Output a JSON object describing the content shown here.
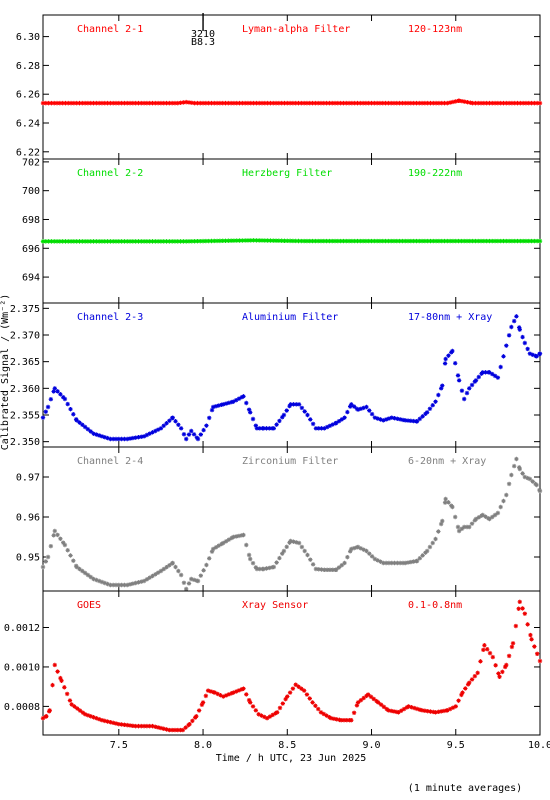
{
  "chart_data": {
    "type": "scatter",
    "marker": "asterisk",
    "xlabel": "Time / h UTC, 23 Jun 2025",
    "ylabel": "Calibrated Signal / (Wm⁻²)",
    "footnote": "(1 minute averages)",
    "xlim": [
      7.05,
      10.0
    ],
    "xticks": [
      7.5,
      8.0,
      8.5,
      9.0,
      9.5,
      10.0
    ],
    "xtick_labels": [
      "7.5",
      "8.0",
      "8.5",
      "9.0",
      "9.5",
      "10.0"
    ],
    "top_annotation": [
      "3210",
      "B8.3"
    ],
    "top_annotation_x": 8.0,
    "panels": [
      {
        "label_left": "Channel 2-1",
        "label_mid": "Lyman-alpha Filter",
        "label_right": "120-123nm",
        "color": "#ff0000",
        "ylim": [
          6.215,
          6.315
        ],
        "yticks": [
          6.22,
          6.24,
          6.26,
          6.28,
          6.3
        ],
        "ytick_labels": [
          "6.22",
          "6.24",
          "6.26",
          "6.28",
          "6.30"
        ],
        "x": [
          7.05,
          7.5,
          7.85,
          7.9,
          7.95,
          8.3,
          9.45,
          9.52,
          9.6,
          10.0
        ],
        "y": [
          6.2538,
          6.2538,
          6.2538,
          6.2545,
          6.2538,
          6.2538,
          6.2538,
          6.2555,
          6.2538,
          6.2538
        ]
      },
      {
        "label_left": "Channel 2-2",
        "label_mid": "Herzberg Filter",
        "label_right": "190-222nm",
        "color": "#00dd00",
        "ylim": [
          692.2,
          702.2
        ],
        "yticks": [
          694,
          696,
          698,
          700,
          702
        ],
        "ytick_labels": [
          "694",
          "696",
          "698",
          "700",
          "702"
        ],
        "x": [
          7.05,
          7.9,
          8.3,
          8.6,
          9.5,
          10.0
        ],
        "y": [
          696.48,
          696.48,
          696.55,
          696.5,
          696.5,
          696.5
        ]
      },
      {
        "label_left": "Channel 2-3",
        "label_mid": "Aluminium Filter",
        "label_right": "17-80nm + Xray",
        "color": "#0000dd",
        "ylim": [
          2.349,
          2.376
        ],
        "yticks": [
          2.35,
          2.355,
          2.36,
          2.365,
          2.37,
          2.375
        ],
        "ytick_labels": [
          "2.350",
          "2.355",
          "2.360",
          "2.365",
          "2.370",
          "2.375"
        ],
        "x": [
          7.05,
          7.08,
          7.12,
          7.18,
          7.25,
          7.35,
          7.45,
          7.55,
          7.65,
          7.75,
          7.82,
          7.87,
          7.9,
          7.93,
          7.97,
          8.02,
          8.06,
          8.12,
          8.18,
          8.24,
          8.28,
          8.32,
          8.36,
          8.42,
          8.48,
          8.52,
          8.57,
          8.62,
          8.67,
          8.72,
          8.79,
          8.84,
          8.88,
          8.92,
          8.97,
          9.02,
          9.07,
          9.12,
          9.2,
          9.27,
          9.33,
          9.38,
          9.42,
          9.44,
          9.48,
          9.52,
          9.55,
          9.58,
          9.62,
          9.66,
          9.7,
          9.75,
          9.8,
          9.83,
          9.86,
          9.88,
          9.91,
          9.94,
          9.98,
          10.0
        ],
        "y": [
          2.3545,
          2.3565,
          2.36,
          2.358,
          2.354,
          2.3515,
          2.3505,
          2.3505,
          2.351,
          2.3525,
          2.3545,
          2.3525,
          2.3505,
          2.352,
          2.3505,
          2.353,
          2.3565,
          2.357,
          2.3575,
          2.3585,
          2.3555,
          2.3525,
          2.3525,
          2.3525,
          2.355,
          2.357,
          2.357,
          2.355,
          2.3525,
          2.3525,
          2.3535,
          2.3545,
          2.357,
          2.356,
          2.3565,
          2.3545,
          2.354,
          2.3545,
          2.354,
          2.3538,
          2.3555,
          2.3575,
          2.3605,
          2.3655,
          2.367,
          2.3615,
          2.358,
          2.36,
          2.3615,
          2.363,
          2.363,
          2.362,
          2.368,
          2.3715,
          2.3735,
          2.371,
          2.3685,
          2.3665,
          2.366,
          2.3665
        ]
      },
      {
        "label_left": "Channel 2-4",
        "label_mid": "Zirconium Filter",
        "label_right": "6-20nm + Xray",
        "color": "#808080",
        "ylim": [
          0.9415,
          0.9775
        ],
        "yticks": [
          0.95,
          0.96,
          0.97
        ],
        "ytick_labels": [
          "0.95",
          "0.96",
          "0.97"
        ],
        "x": [
          7.05,
          7.08,
          7.12,
          7.18,
          7.25,
          7.35,
          7.45,
          7.55,
          7.65,
          7.75,
          7.82,
          7.87,
          7.9,
          7.93,
          7.97,
          8.02,
          8.06,
          8.12,
          8.18,
          8.24,
          8.28,
          8.32,
          8.36,
          8.42,
          8.48,
          8.52,
          8.57,
          8.62,
          8.67,
          8.72,
          8.79,
          8.84,
          8.88,
          8.92,
          8.97,
          9.02,
          9.07,
          9.12,
          9.2,
          9.27,
          9.33,
          9.38,
          9.42,
          9.44,
          9.48,
          9.52,
          9.55,
          9.58,
          9.62,
          9.66,
          9.7,
          9.75,
          9.8,
          9.83,
          9.86,
          9.88,
          9.91,
          9.94,
          9.98,
          10.0
        ],
        "y": [
          0.9475,
          0.95,
          0.9565,
          0.953,
          0.9475,
          0.9445,
          0.943,
          0.943,
          0.944,
          0.9465,
          0.9485,
          0.9455,
          0.942,
          0.9445,
          0.944,
          0.948,
          0.952,
          0.9535,
          0.955,
          0.9555,
          0.9495,
          0.947,
          0.947,
          0.9475,
          0.9515,
          0.954,
          0.9535,
          0.9505,
          0.947,
          0.9468,
          0.9468,
          0.9485,
          0.952,
          0.9525,
          0.9515,
          0.9495,
          0.9485,
          0.9485,
          0.9485,
          0.949,
          0.9515,
          0.9545,
          0.959,
          0.9645,
          0.9625,
          0.9565,
          0.9575,
          0.9575,
          0.9595,
          0.9605,
          0.9595,
          0.961,
          0.9655,
          0.9705,
          0.9745,
          0.972,
          0.97,
          0.9695,
          0.968,
          0.9665
        ]
      },
      {
        "label_left": "GOES",
        "label_mid": "Xray Sensor",
        "label_right": "0.1-0.8nm",
        "color": "#ee0000",
        "ylim": [
          0.000655,
          0.001385
        ],
        "yticks": [
          0.0008,
          0.001,
          0.0012
        ],
        "ytick_labels": [
          "0.0008",
          "0.0010",
          "0.0012"
        ],
        "x": [
          7.05,
          7.07,
          7.09,
          7.12,
          7.16,
          7.22,
          7.3,
          7.4,
          7.5,
          7.6,
          7.7,
          7.8,
          7.88,
          7.92,
          7.96,
          8.0,
          8.03,
          8.07,
          8.12,
          8.18,
          8.24,
          8.28,
          8.33,
          8.38,
          8.44,
          8.5,
          8.55,
          8.6,
          8.65,
          8.7,
          8.76,
          8.82,
          8.88,
          8.92,
          8.98,
          9.04,
          9.1,
          9.16,
          9.22,
          9.3,
          9.38,
          9.45,
          9.5,
          9.54,
          9.58,
          9.63,
          9.67,
          9.72,
          9.76,
          9.8,
          9.84,
          9.88,
          9.91,
          9.95,
          10.0
        ],
        "y": [
          0.00074,
          0.00075,
          0.00078,
          0.00101,
          0.00093,
          0.00081,
          0.00076,
          0.00073,
          0.00071,
          0.0007,
          0.0007,
          0.00068,
          0.00068,
          0.00071,
          0.00075,
          0.00082,
          0.00088,
          0.00087,
          0.00085,
          0.00087,
          0.00089,
          0.00082,
          0.00076,
          0.00074,
          0.00077,
          0.00085,
          0.00091,
          0.00088,
          0.00082,
          0.00077,
          0.00074,
          0.00073,
          0.00073,
          0.00082,
          0.00086,
          0.00082,
          0.00078,
          0.00077,
          0.0008,
          0.00078,
          0.00077,
          0.00078,
          0.0008,
          0.00087,
          0.00092,
          0.00097,
          0.00111,
          0.00105,
          0.00095,
          0.00101,
          0.00112,
          0.00133,
          0.00127,
          0.00114,
          0.00103
        ]
      }
    ]
  }
}
